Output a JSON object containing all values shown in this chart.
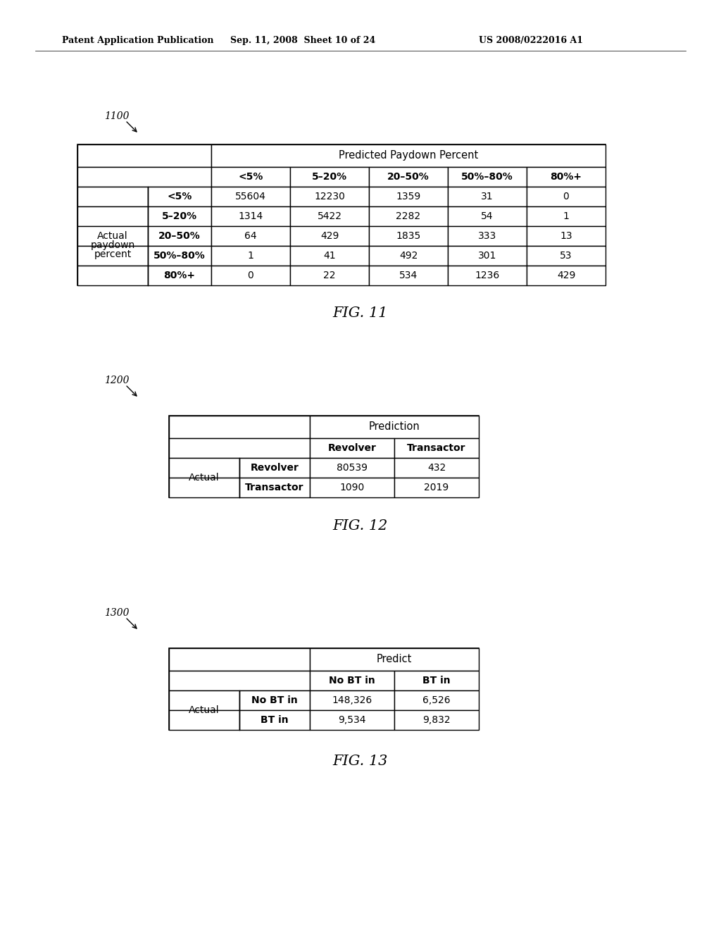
{
  "header_left": "Patent Application Publication",
  "header_center": "Sep. 11, 2008  Sheet 10 of 24",
  "header_right": "US 2008/0222016 A1",
  "fig11_label": "1100",
  "fig11_title": "Predicted Paydown Percent",
  "fig11_col_headers": [
    "<5%",
    "5–20%",
    "20–50%",
    "50%–80%",
    "80%+"
  ],
  "fig11_row_headers": [
    "<5%",
    "5–20%",
    "20–50%",
    "50%–80%",
    "80%+"
  ],
  "fig11_row_label": [
    "Actual",
    "paydown",
    "percent"
  ],
  "fig11_data": [
    [
      55604,
      12230,
      1359,
      31,
      0
    ],
    [
      1314,
      5422,
      2282,
      54,
      1
    ],
    [
      64,
      429,
      1835,
      333,
      13
    ],
    [
      1,
      41,
      492,
      301,
      53
    ],
    [
      0,
      22,
      534,
      1236,
      429
    ]
  ],
  "fig11_caption": "FIG. 11",
  "fig12_label": "1200",
  "fig12_title": "Prediction",
  "fig12_col_headers": [
    "Revolver",
    "Transactor"
  ],
  "fig12_row_headers": [
    "Revolver",
    "Transactor"
  ],
  "fig12_row_label": "Actual",
  "fig12_data": [
    [
      80539,
      432
    ],
    [
      1090,
      2019
    ]
  ],
  "fig12_caption": "FIG. 12",
  "fig13_label": "1300",
  "fig13_title": "Predict",
  "fig13_col_headers": [
    "No BT in",
    "BT in"
  ],
  "fig13_row_headers": [
    "No BT in",
    "BT in"
  ],
  "fig13_row_label": "Actual",
  "fig13_data": [
    [
      "148,326",
      "6,526"
    ],
    [
      "9,534",
      "9,832"
    ]
  ],
  "fig13_caption": "FIG. 13",
  "bg_color": "#ffffff",
  "text_color": "#000000"
}
